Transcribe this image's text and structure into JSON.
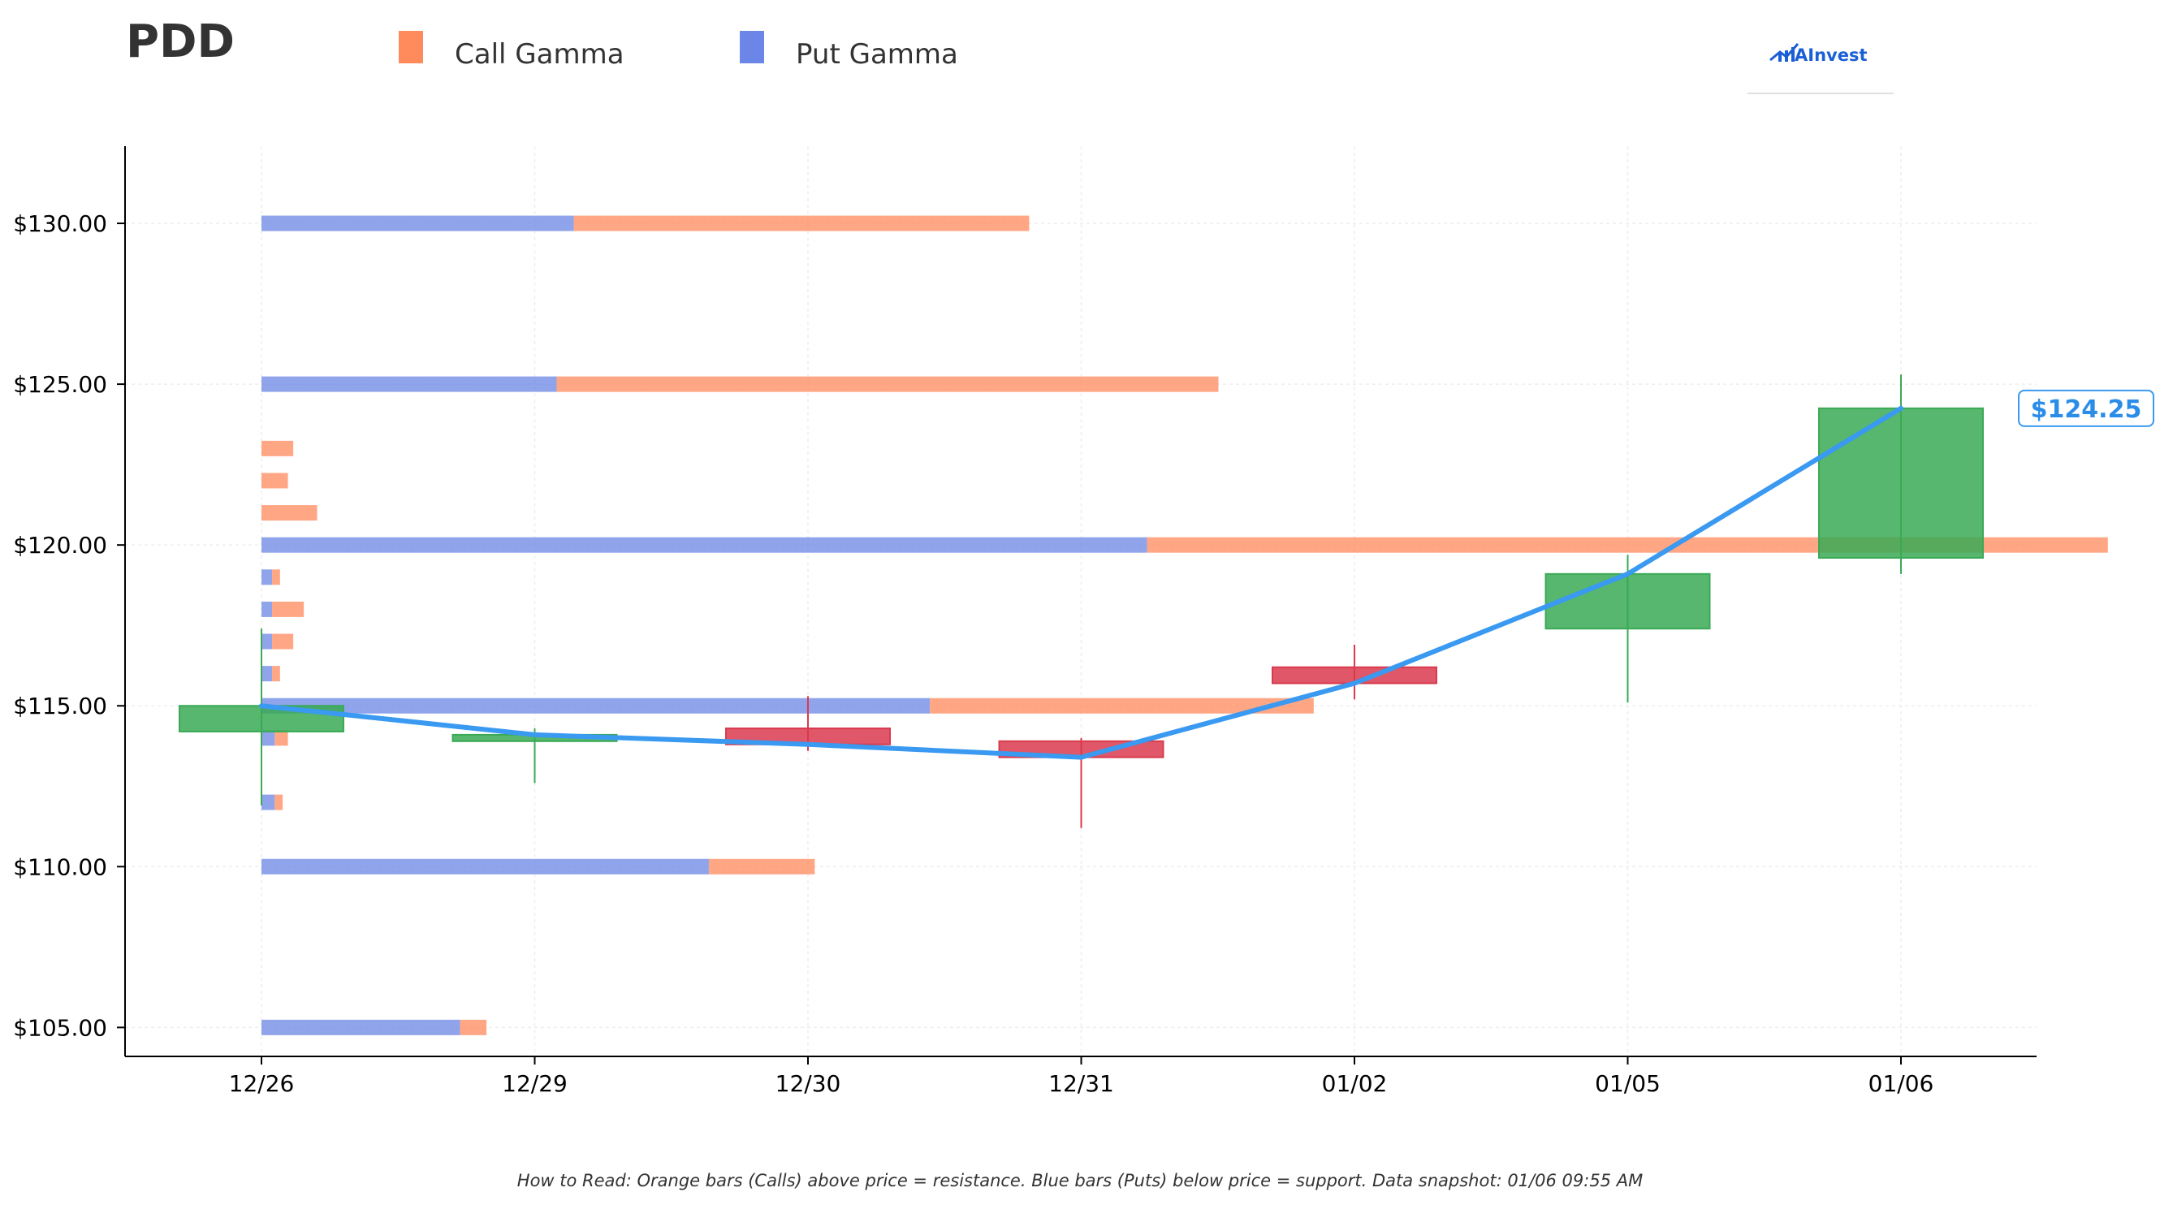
{
  "ticker": "PDD",
  "brand": {
    "name": "AInvest",
    "logo_icon": "rising-chart-icon"
  },
  "legend": [
    {
      "label": "Call Gamma",
      "color": "#ff8a5c"
    },
    {
      "label": "Put Gamma",
      "color": "#6b86e6"
    }
  ],
  "colors": {
    "call": "#ff8a5c",
    "put": "#6b86e6",
    "up_candle": "#3aaa55",
    "down_candle": "#d93a4e",
    "price_line": "#3a99f0",
    "grid": "#eeeeee"
  },
  "footer_note": "How to Read: Orange bars (Calls) above price = resistance. Blue bars (Puts) below price = support. Data snapshot: 01/06 09:55 AM",
  "chart_data": {
    "type": "candlestick",
    "title": "PDD",
    "xlabel": "",
    "ylabel": "",
    "ylim": [
      104.1,
      132.4
    ],
    "grid": true,
    "legend_position": "top",
    "y_ticks": [
      105,
      110,
      115,
      120,
      125,
      130
    ],
    "y_tick_labels": [
      "$105.00",
      "$110.00",
      "$115.00",
      "$120.00",
      "$125.00",
      "$130.00"
    ],
    "categories": [
      "12/26",
      "12/29",
      "12/30",
      "12/31",
      "01/02",
      "01/05",
      "01/06"
    ],
    "candles": [
      {
        "date": "12/26",
        "open": 114.2,
        "high": 117.4,
        "low": 111.9,
        "close": 115.0
      },
      {
        "date": "12/29",
        "open": 113.9,
        "high": 114.3,
        "low": 112.6,
        "close": 114.1
      },
      {
        "date": "12/30",
        "open": 114.3,
        "high": 115.3,
        "low": 113.6,
        "close": 113.8
      },
      {
        "date": "12/31",
        "open": 113.9,
        "high": 114.0,
        "low": 111.2,
        "close": 113.4
      },
      {
        "date": "01/02",
        "open": 116.2,
        "high": 116.9,
        "low": 115.2,
        "close": 115.7
      },
      {
        "date": "01/05",
        "open": 117.4,
        "high": 119.7,
        "low": 115.1,
        "close": 119.1
      },
      {
        "date": "01/06",
        "open": 119.6,
        "high": 125.3,
        "low": 119.1,
        "close": 124.25
      }
    ],
    "price_line": {
      "series": "Close",
      "values": [
        115.0,
        114.1,
        113.8,
        113.4,
        115.7,
        119.1,
        124.25
      ],
      "current_price_label": "$124.25"
    },
    "gamma_bars": [
      {
        "strike": 130,
        "put": 2.36,
        "call": 3.44
      },
      {
        "strike": 125,
        "put": 2.23,
        "call": 5.0
      },
      {
        "strike": 123,
        "put": 0,
        "call": 0.24
      },
      {
        "strike": 122,
        "put": 0,
        "call": 0.2
      },
      {
        "strike": 121,
        "put": 0,
        "call": 0.42
      },
      {
        "strike": 120,
        "put": 6.69,
        "call": 7.26
      },
      {
        "strike": 119,
        "put": 0.08,
        "call": 0.06
      },
      {
        "strike": 118,
        "put": 0.08,
        "call": 0.24
      },
      {
        "strike": 117,
        "put": 0.08,
        "call": 0.16
      },
      {
        "strike": 116,
        "put": 0.08,
        "call": 0.06
      },
      {
        "strike": 115,
        "put": 5.05,
        "call": 2.9
      },
      {
        "strike": 114,
        "put": 0.1,
        "call": 0.1
      },
      {
        "strike": 112,
        "put": 0.1,
        "call": 0.06
      },
      {
        "strike": 110,
        "put": 3.38,
        "call": 0.8
      },
      {
        "strike": 105,
        "put": 1.5,
        "call": 0.2
      }
    ]
  }
}
